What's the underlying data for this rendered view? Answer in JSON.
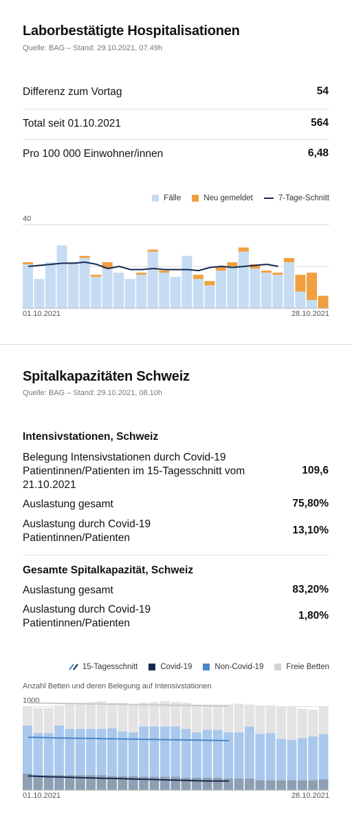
{
  "hospital": {
    "title": "Laborbestätigte Hospitalisationen",
    "source": "Quelle: BAG – Stand: 29.10.2021, 07.49h",
    "stats": [
      {
        "label": "Differenz zum Vortag",
        "value": "54"
      },
      {
        "label": "Total seit 01.10.2021",
        "value": "564"
      },
      {
        "label": "Pro 100 000 Einwohner/innen",
        "value": "6,48"
      }
    ],
    "legend": {
      "cases": "Fälle",
      "new": "Neu gemeldet",
      "avg": "7-Tage-Schnitt"
    },
    "y_top_label": "40",
    "x_start": "01.10.2021",
    "x_end": "28.10.2021"
  },
  "capacity": {
    "title": "Spitalkapazitäten Schweiz",
    "source": "Quelle: BAG – Stand: 29.10.2021, 08.10h",
    "icu": {
      "heading": "Intensivstationen, Schweiz",
      "rows": [
        {
          "label": "Belegung Intensivstationen durch Covid-19 Patientinnen/Patienten im 15-Tagesschnitt vom 21.10.2021",
          "value": "109,6"
        },
        {
          "label": "Auslastung gesamt",
          "value": "75,80%"
        },
        {
          "label": "Auslastung durch Covid-19 Patientinnen/Patienten",
          "value": "13,10%"
        }
      ]
    },
    "total": {
      "heading": "Gesamte Spitalkapazität, Schweiz",
      "rows": [
        {
          "label": "Auslastung gesamt",
          "value": "83,20%"
        },
        {
          "label": "Auslastung durch Covid-19 Patientinnen/Patienten",
          "value": "1,80%"
        }
      ]
    },
    "legend": {
      "avg15": "15-Tagesschnitt",
      "covid": "Covid-19",
      "noncovid": "Non-Covid-19",
      "free": "Freie Betten"
    },
    "chart_subtitle": "Anzahl Betten und deren Belegung auf Intensivstationen",
    "y_top_label": "1000",
    "x_start": "01.10.2021",
    "x_end": "28.10.2021"
  },
  "colors": {
    "cases": "#c6dcf2",
    "new": "#f0a040",
    "avg": "#14294f",
    "covid": "#8f9fb3",
    "noncovid": "#a9c8ec",
    "free": "#e3e3e3",
    "avg15_light": "#4a86c8"
  },
  "chart_data": [
    {
      "type": "bar",
      "title": "",
      "ylim": [
        0,
        40
      ],
      "x_start": "01.10.2021",
      "x_end": "28.10.2021",
      "series": [
        {
          "name": "Fälle",
          "values": [
            21,
            14,
            22,
            30,
            22,
            24,
            15,
            19,
            17,
            14,
            16,
            27,
            17,
            15,
            25,
            14,
            11,
            18,
            20,
            27,
            19,
            17,
            16,
            22,
            8,
            4,
            0
          ]
        },
        {
          "name": "Neu gemeldet",
          "values": [
            1,
            0,
            0,
            0,
            0,
            1,
            1,
            3,
            0,
            0,
            1,
            1,
            1,
            0,
            0,
            2,
            2,
            2,
            2,
            2,
            2,
            1,
            1,
            2,
            8,
            13,
            6
          ]
        },
        {
          "name": "7-Tage-Schnitt",
          "values": [
            20,
            20.5,
            21,
            21.5,
            21.5,
            22,
            21,
            19,
            20,
            18.5,
            18.5,
            19,
            18.5,
            18.5,
            18.5,
            18,
            19.5,
            20,
            19.5,
            20,
            20.5,
            21,
            20
          ]
        }
      ]
    },
    {
      "type": "bar",
      "title": "",
      "ylim": [
        0,
        1000
      ],
      "x_start": "01.10.2021",
      "x_end": "28.10.2021",
      "series": [
        {
          "name": "Covid-19",
          "values": [
            200,
            180,
            180,
            180,
            180,
            180,
            180,
            180,
            170,
            170,
            170,
            160,
            160,
            160,
            160,
            150,
            150,
            150,
            150,
            140,
            140,
            140,
            120,
            120,
            120,
            120,
            120,
            120,
            130
          ]
        },
        {
          "name": "Non-Covid-19",
          "values": [
            570,
            500,
            500,
            590,
            550,
            550,
            550,
            550,
            570,
            530,
            520,
            600,
            600,
            600,
            600,
            580,
            540,
            570,
            570,
            550,
            550,
            620,
            550,
            560,
            490,
            480,
            500,
            520,
            540
          ]
        },
        {
          "name": "Freie Betten",
          "values": [
            230,
            300,
            300,
            240,
            300,
            310,
            320,
            330,
            300,
            340,
            320,
            280,
            290,
            300,
            290,
            310,
            330,
            300,
            300,
            330,
            340,
            260,
            340,
            330,
            390,
            390,
            350,
            320,
            330
          ]
        },
        {
          "name": "15-Tagesschnitt Covid-19",
          "values": [
            170,
            165,
            160,
            157,
            153,
            150,
            147,
            143,
            140,
            137,
            133,
            130,
            127,
            123,
            120,
            117,
            113,
            110,
            110,
            110
          ]
        },
        {
          "name": "15-Tagesschnitt Non-Covid-19",
          "values": [
            630,
            628,
            625,
            622,
            620,
            618,
            616,
            614,
            612,
            610,
            608,
            606,
            604,
            602,
            600,
            598,
            596,
            594,
            592,
            590
          ]
        },
        {
          "name": "15-Tagesschnitt Freie Betten",
          "values": [
            1040,
            1038,
            1036,
            1034,
            1032,
            1030,
            1028,
            1026,
            1024,
            1022,
            1020,
            1018,
            1016,
            1014,
            1012,
            1010,
            1008,
            1006,
            1004,
            1002
          ]
        }
      ]
    }
  ]
}
